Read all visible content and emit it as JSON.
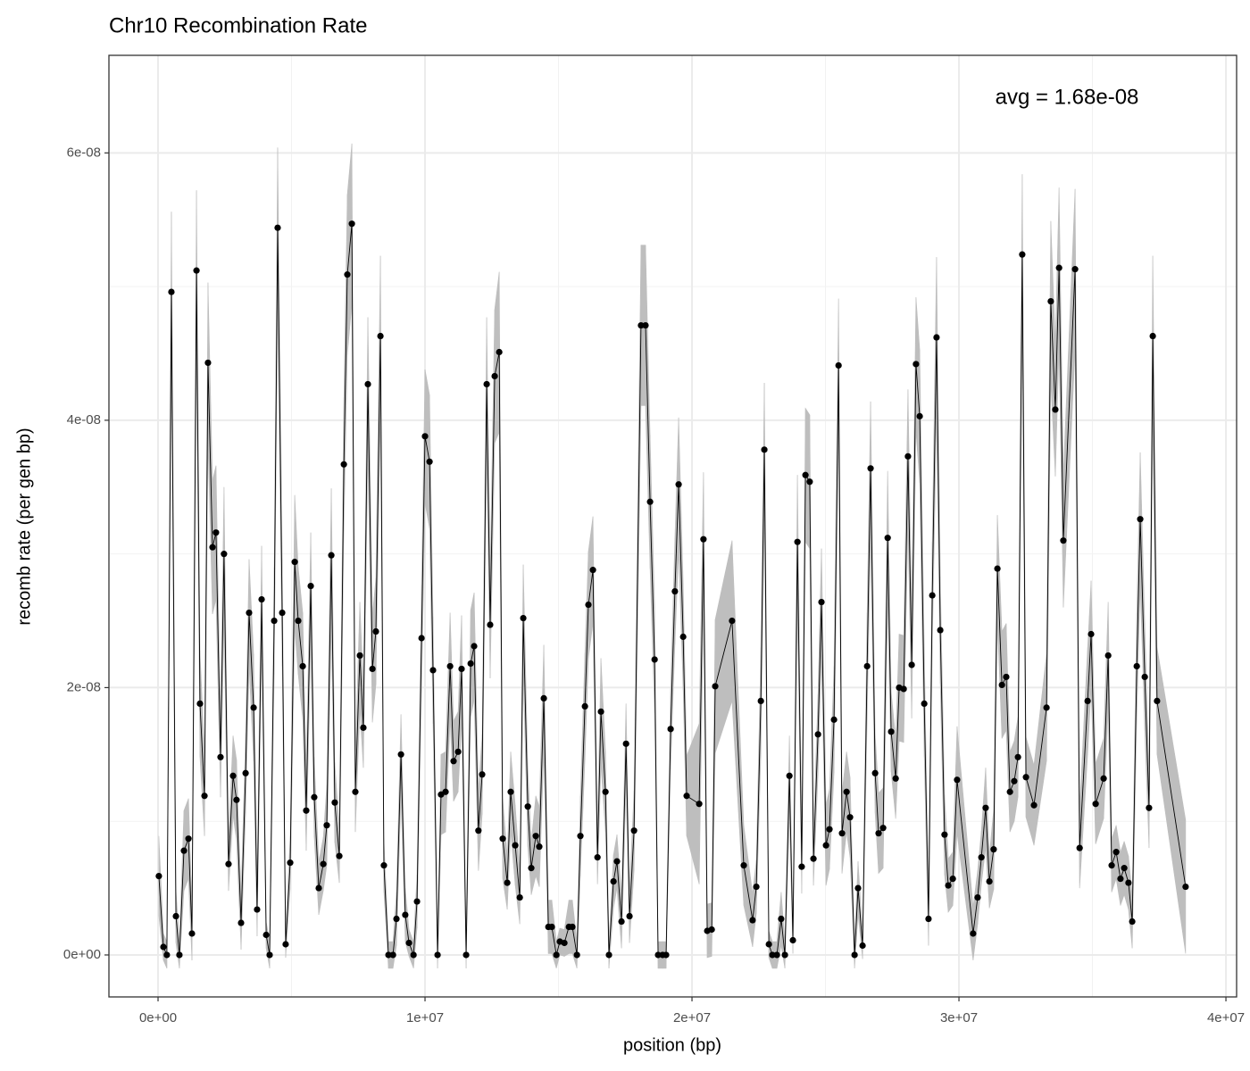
{
  "chart_data": {
    "type": "line",
    "title": "Chr10 Recombination Rate",
    "x_label": "position (bp)",
    "y_label": "recomb rate (per gen bp)",
    "annotation": "avg = 1.68e-08",
    "xlim": [
      -1840000.0,
      40400000.0
    ],
    "ylim": [
      -3.14e-09,
      6.73e-08
    ],
    "xticks": [
      {
        "value": 0,
        "label": "0e+00"
      },
      {
        "value": 10000000.0,
        "label": "1e+07"
      },
      {
        "value": 20000000.0,
        "label": "2e+07"
      },
      {
        "value": 30000000.0,
        "label": "3e+07"
      },
      {
        "value": 40000000.0,
        "label": "4e+07"
      }
    ],
    "yticks": [
      {
        "value": 0,
        "label": "0e+00"
      },
      {
        "value": 2e-08,
        "label": "2e-08"
      },
      {
        "value": 4e-08,
        "label": "4e-08"
      },
      {
        "value": 6e-08,
        "label": "6e-08"
      }
    ],
    "minor_xticks": [
      5000000.0,
      15000000.0,
      25000000.0,
      35000000.0
    ],
    "minor_yticks": [
      1e-08,
      3e-08,
      5e-08
    ],
    "grid": true,
    "line_color": "#000000",
    "band_color": "#bebebe",
    "x": [
      30000.0,
      200000.0,
      330000.0,
      500000.0,
      670000.0,
      800000.0,
      970000.0,
      1140000.0,
      1270000.0,
      1440000.0,
      1570000.0,
      1740000.0,
      1870000.0,
      2040000.0,
      2170000.0,
      2340000.0,
      2470000.0,
      2640000.0,
      2810000.0,
      2940000.0,
      3110000.0,
      3280000.0,
      3410000.0,
      3580000.0,
      3710000.0,
      3880000.0,
      4050000.0,
      4180000.0,
      4350000.0,
      4480000.0,
      4650000.0,
      4780000.0,
      4950000.0,
      5120000.0,
      5250000.0,
      5420000.0,
      5550000.0,
      5720000.0,
      5850000.0,
      6020000.0,
      6190000.0,
      6320000.0,
      6490000.0,
      6620000.0,
      6790000.0,
      6960000.0,
      7090000.0,
      7260000.0,
      7390000.0,
      7560000.0,
      7690000.0,
      7860000.0,
      8030000.0,
      8160000.0,
      8330000.0,
      8460000.0,
      8630000.0,
      8800000.0,
      8930000.0,
      9100000.0,
      9260000.0,
      9400000.0,
      9570000.0,
      9700000.0,
      9870000.0,
      10000000.0,
      10170000.0,
      10300000.0,
      10470000.0,
      10600000.0,
      10770000.0,
      10940000.0,
      11070000.0,
      11240000.0,
      11370000.0,
      11540000.0,
      11710000.0,
      11840000.0,
      12000000.0,
      12140000.0,
      12310000.0,
      12440000.0,
      12610000.0,
      12780000.0,
      12910000.0,
      13080000.0,
      13210000.0,
      13380000.0,
      13550000.0,
      13680000.0,
      13850000.0,
      13980000.0,
      14150000.0,
      14280000.0,
      14450000.0,
      14620000.0,
      14750000.0,
      14920000.0,
      15050000.0,
      15220000.0,
      15390000.0,
      15520000.0,
      15690000.0,
      15820000.0,
      15990000.0,
      16120000.0,
      16290000.0,
      16460000.0,
      16590000.0,
      16760000.0,
      16890000.0,
      17060000.0,
      17190000.0,
      17360000.0,
      17530000.0,
      17660000.0,
      17830000.0,
      18090000.0,
      18260000.0,
      18430000.0,
      18600000.0,
      18730000.0,
      18900000.0,
      19030000.0,
      19200000.0,
      19360000.0,
      19500000.0,
      19670000.0,
      19800000.0,
      20270000.0,
      20430000.0,
      20570000.0,
      20740000.0,
      20870000.0,
      21500000.0,
      21940000.0,
      22270000.0,
      22410000.0,
      22580000.0,
      22710000.0,
      22880000.0,
      23010000.0,
      23180000.0,
      23340000.0,
      23480000.0,
      23650000.0,
      23780000.0,
      23950000.0,
      24110000.0,
      24250000.0,
      24410000.0,
      24550000.0,
      24720000.0,
      24850000.0,
      25020000.0,
      25150000.0,
      25320000.0,
      25490000.0,
      25620000.0,
      25790000.0,
      25920000.0,
      26090000.0,
      26220000.0,
      26390000.0,
      26560000.0,
      26690000.0,
      26860000.0,
      26990000.0,
      27160000.0,
      27330000.0,
      27460000.0,
      27630000.0,
      27760000.0,
      27930000.0,
      28090000.0,
      28230000.0,
      28390000.0,
      28530000.0,
      28700000.0,
      28860000.0,
      29000000.0,
      29160000.0,
      29300000.0,
      29460000.0,
      29600000.0,
      29770000.0,
      29930000.0,
      30530000.0,
      30700000.0,
      30840000.0,
      31000000.0,
      31140000.0,
      31300000.0,
      31440000.0,
      31610000.0,
      31770000.0,
      31910000.0,
      32070000.0,
      32210000.0,
      32370000.0,
      32510000.0,
      32810000.0,
      33280000.0,
      33440000.0,
      33610000.0,
      33750000.0,
      33910000.0,
      34350000.0,
      34520000.0,
      34820000.0,
      34950000.0,
      35120000.0,
      35420000.0,
      35590000.0,
      35720000.0,
      35890000.0,
      36050000.0,
      36190000.0,
      36350000.0,
      36490000.0,
      36660000.0,
      36790000.0,
      36960000.0,
      37120000.0,
      37260000.0,
      37420000.0,
      38490000.0
    ],
    "values": [
      5.9e-09,
      6e-10,
      0,
      4.96e-08,
      2.9e-09,
      0,
      7.8e-09,
      8.7e-09,
      1.6e-09,
      5.12e-08,
      1.88e-08,
      1.19e-08,
      4.43e-08,
      3.05e-08,
      3.16e-08,
      1.48e-08,
      3e-08,
      6.8e-09,
      1.34e-08,
      1.16e-08,
      2.4e-09,
      1.36e-08,
      2.56e-08,
      1.85e-08,
      3.4e-09,
      2.66e-08,
      1.5e-09,
      0,
      2.5e-08,
      5.44e-08,
      2.56e-08,
      8e-10,
      6.9e-09,
      2.94e-08,
      2.5e-08,
      2.16e-08,
      1.08e-08,
      2.76e-08,
      1.18e-08,
      5e-09,
      6.8e-09,
      9.7e-09,
      2.99e-08,
      1.14e-08,
      7.4e-09,
      3.67e-08,
      5.09e-08,
      5.47e-08,
      1.22e-08,
      2.24e-08,
      1.7e-08,
      4.27e-08,
      2.14e-08,
      2.42e-08,
      4.63e-08,
      6.7e-09,
      0,
      0,
      2.7e-09,
      1.5e-08,
      3e-09,
      9e-10,
      0,
      4e-09,
      2.37e-08,
      3.88e-08,
      3.69e-08,
      2.13e-08,
      0,
      1.2e-08,
      1.22e-08,
      2.16e-08,
      1.45e-08,
      1.52e-08,
      2.14e-08,
      0,
      2.18e-08,
      2.31e-08,
      9.3e-09,
      1.35e-08,
      4.27e-08,
      2.47e-08,
      4.33e-08,
      4.51e-08,
      8.7e-09,
      5.4e-09,
      1.22e-08,
      8.2e-09,
      4.3e-09,
      2.52e-08,
      1.11e-08,
      6.5e-09,
      8.9e-09,
      8.1e-09,
      1.92e-08,
      2.1e-09,
      2.1e-09,
      0,
      1e-09,
      9e-10,
      2.1e-09,
      2.1e-09,
      0,
      8.9e-09,
      1.86e-08,
      2.62e-08,
      2.88e-08,
      7.3e-09,
      1.82e-08,
      1.22e-08,
      0,
      5.5e-09,
      7e-09,
      2.5e-09,
      1.58e-08,
      2.9e-09,
      9.3e-09,
      4.71e-08,
      4.71e-08,
      3.39e-08,
      2.21e-08,
      0,
      0,
      0,
      1.69e-08,
      2.72e-08,
      3.52e-08,
      2.38e-08,
      1.19e-08,
      1.13e-08,
      3.11e-08,
      1.8e-09,
      1.9e-09,
      2.01e-08,
      2.5e-08,
      6.7e-09,
      2.6e-09,
      5.1e-09,
      1.9e-08,
      3.78e-08,
      8e-10,
      0,
      0,
      2.7e-09,
      0,
      1.34e-08,
      1.1e-09,
      3.09e-08,
      6.6e-09,
      3.59e-08,
      3.54e-08,
      7.2e-09,
      1.65e-08,
      2.64e-08,
      8.2e-09,
      9.4e-09,
      1.76e-08,
      4.41e-08,
      9.1e-09,
      1.22e-08,
      1.03e-08,
      0,
      5e-09,
      7e-10,
      2.16e-08,
      3.64e-08,
      1.36e-08,
      9.1e-09,
      9.5e-09,
      3.12e-08,
      1.67e-08,
      1.32e-08,
      2e-08,
      1.99e-08,
      3.73e-08,
      2.17e-08,
      4.42e-08,
      4.03e-08,
      1.88e-08,
      2.7e-09,
      2.69e-08,
      4.62e-08,
      2.43e-08,
      9e-09,
      5.2e-09,
      5.7e-09,
      1.31e-08,
      1.6e-09,
      4.3e-09,
      7.3e-09,
      1.1e-08,
      5.5e-09,
      7.9e-09,
      2.89e-08,
      2.02e-08,
      2.08e-08,
      1.22e-08,
      1.3e-08,
      1.48e-08,
      5.24e-08,
      1.33e-08,
      1.12e-08,
      1.85e-08,
      4.89e-08,
      4.08e-08,
      5.14e-08,
      3.1e-08,
      5.13e-08,
      8e-09,
      1.9e-08,
      2.4e-08,
      1.13e-08,
      1.32e-08,
      2.24e-08,
      6.7e-09,
      7.7e-09,
      5.7e-09,
      6.5e-09,
      5.4e-09,
      2.5e-09,
      2.16e-08,
      3.26e-08,
      2.08e-08,
      1.1e-08,
      4.63e-08,
      1.9e-08,
      5.1e-09
    ],
    "errors": [
      3e-09,
      1e-09,
      1e-09,
      6e-09,
      2e-09,
      1e-09,
      3e-09,
      3e-09,
      2e-09,
      6e-09,
      4e-09,
      3e-09,
      6e-09,
      5e-09,
      5e-09,
      3e-09,
      5e-09,
      2e-09,
      3e-09,
      3e-09,
      2e-09,
      3e-09,
      4e-09,
      4e-09,
      2e-09,
      4e-09,
      1e-09,
      1e-09,
      4e-09,
      6e-09,
      4e-09,
      1e-09,
      2e-09,
      5e-09,
      4e-09,
      4e-09,
      3e-09,
      4e-09,
      3e-09,
      2e-09,
      2e-09,
      3e-09,
      5e-09,
      3e-09,
      2e-09,
      5e-09,
      6e-09,
      6e-09,
      3e-09,
      4e-09,
      3e-09,
      5e-09,
      4e-09,
      4e-09,
      6e-09,
      2e-09,
      1e-09,
      1e-09,
      2e-09,
      3e-09,
      2e-09,
      1e-09,
      1e-09,
      2e-09,
      4e-09,
      5e-09,
      5e-09,
      4e-09,
      1e-09,
      3e-09,
      3e-09,
      4e-09,
      3e-09,
      3e-09,
      4e-09,
      1e-09,
      4e-09,
      4e-09,
      3e-09,
      3e-09,
      5e-09,
      4e-09,
      5e-09,
      6e-09,
      3e-09,
      2e-09,
      3e-09,
      3e-09,
      2e-09,
      4e-09,
      3e-09,
      2e-09,
      3e-09,
      3e-09,
      4e-09,
      2e-09,
      2e-09,
      1e-09,
      1e-09,
      1e-09,
      2e-09,
      2e-09,
      1e-09,
      3e-09,
      4e-09,
      4e-09,
      4e-09,
      2e-09,
      4e-09,
      3e-09,
      1e-09,
      2e-09,
      2e-09,
      2e-09,
      3e-09,
      2e-09,
      3e-09,
      6e-09,
      6e-09,
      5e-09,
      4e-09,
      1e-09,
      1e-09,
      1e-09,
      3e-09,
      4e-09,
      5e-09,
      4e-09,
      3e-09,
      6e-09,
      5e-09,
      2e-09,
      2e-09,
      5e-09,
      6e-09,
      3e-09,
      2e-09,
      2e-09,
      4e-09,
      5e-09,
      1e-09,
      1e-09,
      1e-09,
      2e-09,
      1e-09,
      3e-09,
      1e-09,
      5e-09,
      2e-09,
      5e-09,
      5e-09,
      2e-09,
      3e-09,
      4e-09,
      3e-09,
      3e-09,
      4e-09,
      5e-09,
      3e-09,
      3e-09,
      3e-09,
      1e-09,
      2e-09,
      1e-09,
      4e-09,
      5e-09,
      3e-09,
      3e-09,
      3e-09,
      5e-09,
      3e-09,
      3e-09,
      4e-09,
      4e-09,
      5e-09,
      4e-09,
      5e-09,
      5e-09,
      4e-09,
      2e-09,
      4e-09,
      6e-09,
      4e-09,
      3e-09,
      2e-09,
      2e-09,
      4e-09,
      2e-09,
      2e-09,
      2e-09,
      3e-09,
      2e-09,
      3e-09,
      4e-09,
      4e-09,
      4e-09,
      3e-09,
      3e-09,
      3e-09,
      6e-09,
      3e-09,
      3e-09,
      4e-09,
      6e-09,
      5e-09,
      6e-09,
      5e-09,
      6e-09,
      3e-09,
      4e-09,
      4e-09,
      3e-09,
      3e-09,
      4e-09,
      2e-09,
      2e-09,
      2e-09,
      2e-09,
      2e-09,
      2e-09,
      4e-09,
      5e-09,
      4e-09,
      3e-09,
      6e-09,
      4e-09,
      5e-09
    ]
  }
}
